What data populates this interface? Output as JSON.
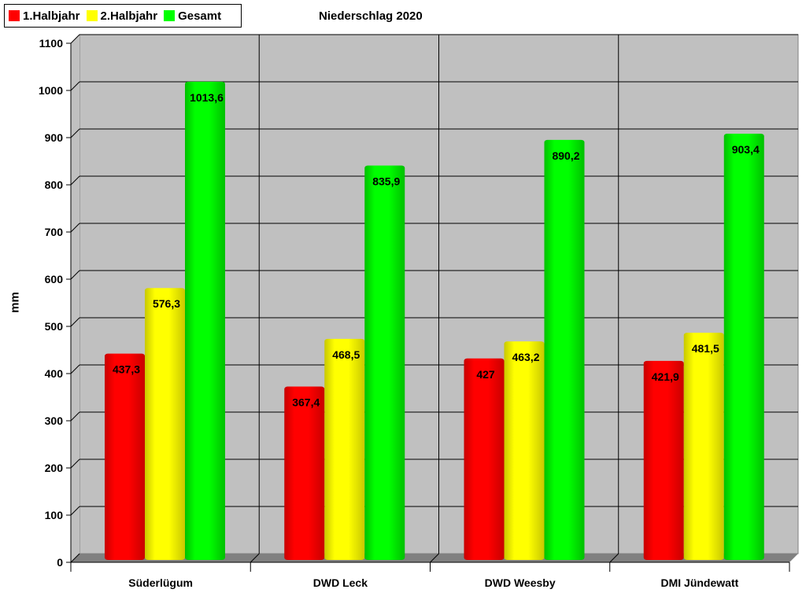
{
  "chart_data": {
    "type": "bar",
    "title": "Niederschlag 2020",
    "xlabel": "",
    "ylabel": "mm",
    "ylim": [
      0,
      1100
    ],
    "yticks": [
      0,
      100,
      200,
      300,
      400,
      500,
      600,
      700,
      800,
      900,
      1000,
      1100
    ],
    "grid": true,
    "legend_position": "top-left",
    "categories": [
      "Süderlügum",
      "DWD Leck",
      "DWD Weesby",
      "DMI Jündewatt"
    ],
    "series": [
      {
        "name": "1.Halbjahr",
        "color": "#ff0000",
        "values": [
          437.3,
          367.4,
          427,
          421.9
        ],
        "labels": [
          "437,3",
          "367,4",
          "427",
          "421,9"
        ]
      },
      {
        "name": "2.Halbjahr",
        "color": "#ffff00",
        "values": [
          576.3,
          468.5,
          463.2,
          481.5
        ],
        "labels": [
          "576,3",
          "468,5",
          "463,2",
          "481,5"
        ]
      },
      {
        "name": "Gesamt",
        "color": "#00ff00",
        "values": [
          1013.6,
          835.9,
          890.2,
          903.4
        ],
        "labels": [
          "1013,6",
          "835,9",
          "890,2",
          "903,4"
        ]
      }
    ]
  }
}
